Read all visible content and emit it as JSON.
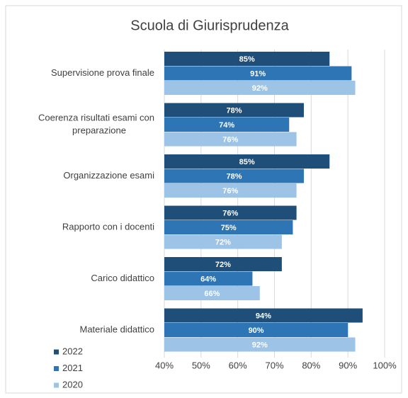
{
  "chart_data": {
    "type": "bar",
    "orientation": "horizontal",
    "title": "Scuola di Giurisprudenza",
    "categories": [
      "Supervisione prova finale",
      "Coerenza risultati esami con preparazione",
      "Organizzazione esami",
      "Rapporto con i docenti",
      "Carico didattico",
      "Materiale didattico"
    ],
    "series": [
      {
        "name": "2022",
        "color": "#1f4e79",
        "values": [
          85,
          78,
          85,
          76,
          72,
          94
        ],
        "value_labels": [
          "85%",
          "78%",
          "85%",
          "76%",
          "72%",
          "94%"
        ]
      },
      {
        "name": "2021",
        "color": "#2e75b6",
        "values": [
          91,
          74,
          78,
          75,
          64,
          90
        ],
        "value_labels": [
          "91%",
          "74%",
          "78%",
          "75%",
          "64%",
          "90%"
        ]
      },
      {
        "name": "2020",
        "color": "#9dc3e6",
        "values": [
          92,
          76,
          76,
          72,
          66,
          92
        ],
        "value_labels": [
          "92%",
          "76%",
          "76%",
          "72%",
          "66%",
          "92%"
        ]
      }
    ],
    "xlim": [
      40,
      100
    ],
    "xticks": [
      {
        "value": 40,
        "label": "40%"
      },
      {
        "value": 50,
        "label": "50%"
      },
      {
        "value": 60,
        "label": "60%"
      },
      {
        "value": 70,
        "label": "70%"
      },
      {
        "value": 80,
        "label": "80%"
      },
      {
        "value": 90,
        "label": "90%"
      },
      {
        "value": 100,
        "label": "100%"
      }
    ],
    "grid": true,
    "legend": "bottom-left"
  }
}
